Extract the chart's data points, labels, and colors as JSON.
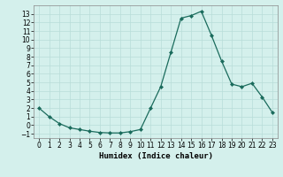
{
  "title": "",
  "xlabel": "Humidex (Indice chaleur)",
  "x": [
    0,
    1,
    2,
    3,
    4,
    5,
    6,
    7,
    8,
    9,
    10,
    11,
    12,
    13,
    14,
    15,
    16,
    17,
    18,
    19,
    20,
    21,
    22,
    23
  ],
  "y": [
    2,
    1.0,
    0.2,
    -0.3,
    -0.5,
    -0.7,
    -0.85,
    -0.9,
    -0.9,
    -0.75,
    -0.5,
    2.0,
    4.5,
    8.5,
    12.5,
    12.8,
    13.3,
    10.5,
    7.5,
    4.8,
    4.5,
    4.9,
    3.3,
    1.5
  ],
  "line_color": "#1a6b5c",
  "marker": "D",
  "marker_size": 2,
  "bg_color": "#d4f0ec",
  "grid_color": "#b8ddd8",
  "ylim": [
    -1.5,
    14.0
  ],
  "xlim": [
    -0.5,
    23.5
  ],
  "yticks": [
    -1,
    0,
    1,
    2,
    3,
    4,
    5,
    6,
    7,
    8,
    9,
    10,
    11,
    12,
    13
  ],
  "xticks": [
    0,
    1,
    2,
    3,
    4,
    5,
    6,
    7,
    8,
    9,
    10,
    11,
    12,
    13,
    14,
    15,
    16,
    17,
    18,
    19,
    20,
    21,
    22,
    23
  ],
  "tick_fontsize": 5.5,
  "xlabel_fontsize": 6.5
}
